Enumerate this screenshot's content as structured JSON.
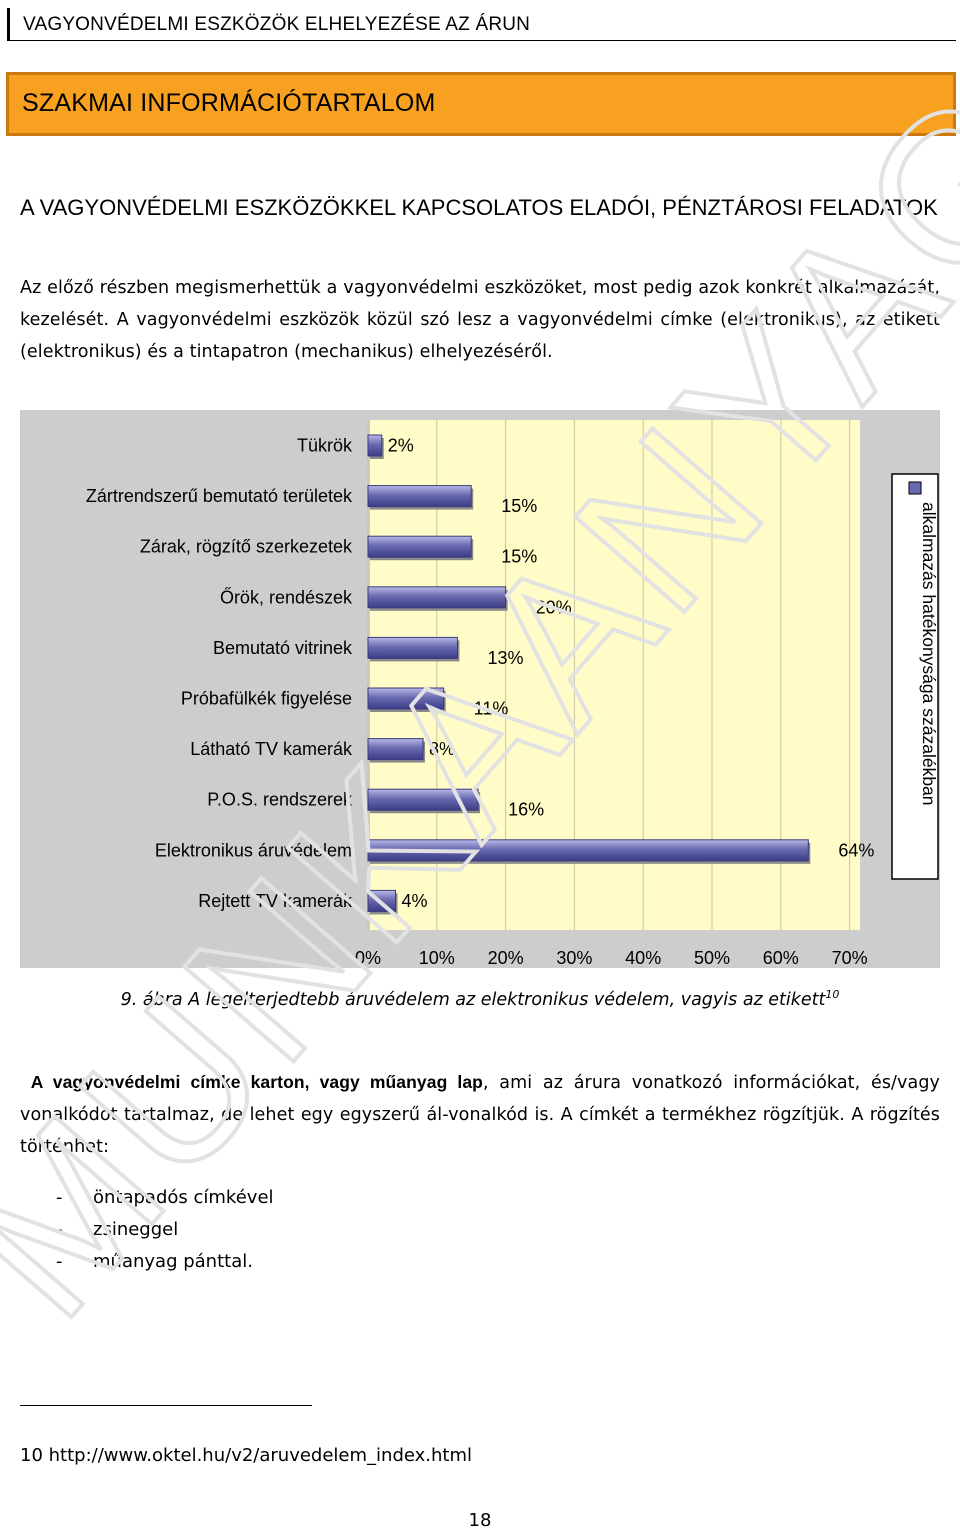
{
  "header": {
    "running_title": "VAGYONVÉDELMI ESZKÖZÖK ELHELYEZÉSE AZ ÁRUN"
  },
  "banner": {
    "title": "SZAKMAI INFORMÁCIÓTARTALOM"
  },
  "section": {
    "heading": "A VAGYONVÉDELMI ESZKÖZÖKKEL KAPCSOLATOS ELADÓI, PÉNZTÁROSI FELADATOK",
    "intro": "Az előző részben megismerhettük a vagyonvédelmi eszközöket, most pedig azok konkrét alkalmazását, kezelését. A vagyonvédelmi eszközök közül szó lesz a vagyonvédelmi címke (elektronikus), az etikett (elektronikus) és a tintapatron (mechanikus) elhelyezéséről."
  },
  "colors": {
    "banner": "#f8a120",
    "plot_bg": "#fffcc8",
    "bar": "#6a6ab0"
  },
  "chart_data": {
    "type": "bar",
    "orientation": "horizontal",
    "categories": [
      "Tükrök",
      "Zártrendszerű bemutató területek",
      "Zárak, rögzítő szerkezetek",
      "Őrök, rendészek",
      "Bemutató vitrinek",
      "Próbafülkék figyelése",
      "Látható TV kamerák",
      "P.O.S. rendszerek",
      "Elektronikus áruvédelem",
      "Rejtett TV kamerák"
    ],
    "series": [
      {
        "name": "alkalmazás hatékonysága százalékban",
        "values": [
          2,
          15,
          15,
          20,
          13,
          11,
          8,
          16,
          64,
          4
        ]
      }
    ],
    "data_labels": [
      "2%",
      "15%",
      "15%",
      "20%",
      "13%",
      "11%",
      "8%",
      "16%",
      "64%",
      "4%"
    ],
    "xticks": [
      "0%",
      "10%",
      "20%",
      "30%",
      "40%",
      "50%",
      "60%",
      "70%"
    ],
    "xlim": [
      0,
      70
    ],
    "grid": true,
    "legend_position": "right-vertical",
    "title": "",
    "xlabel": "",
    "ylabel": ""
  },
  "figure": {
    "caption_number": "9.",
    "caption_text": "ábra A legelterjedtebb áruvédelem az elektronikus védelem, vagyis az etikett",
    "footnote_ref": "10"
  },
  "body": {
    "para_bold": "A vagyonvédelmi címke karton, vagy műanyag lap",
    "para_rest": ", ami az árura vonatkozó információkat, és/vagy vonalkódot tartalmaz, de lehet egy egyszerű ál-vonalkód is. A címkét a termékhez rögzítjük. A rögzítés történhet:"
  },
  "list": {
    "dash": "-",
    "items": [
      "öntapadós címkével",
      "zsineggel",
      "műanyag pánttal."
    ]
  },
  "footnote": {
    "number": "10",
    "text": "http://www.oktel.hu/v2/aruvedelem_index.html"
  },
  "page": {
    "number": "18"
  },
  "watermark": {
    "text": "MUNKAANYAG"
  }
}
